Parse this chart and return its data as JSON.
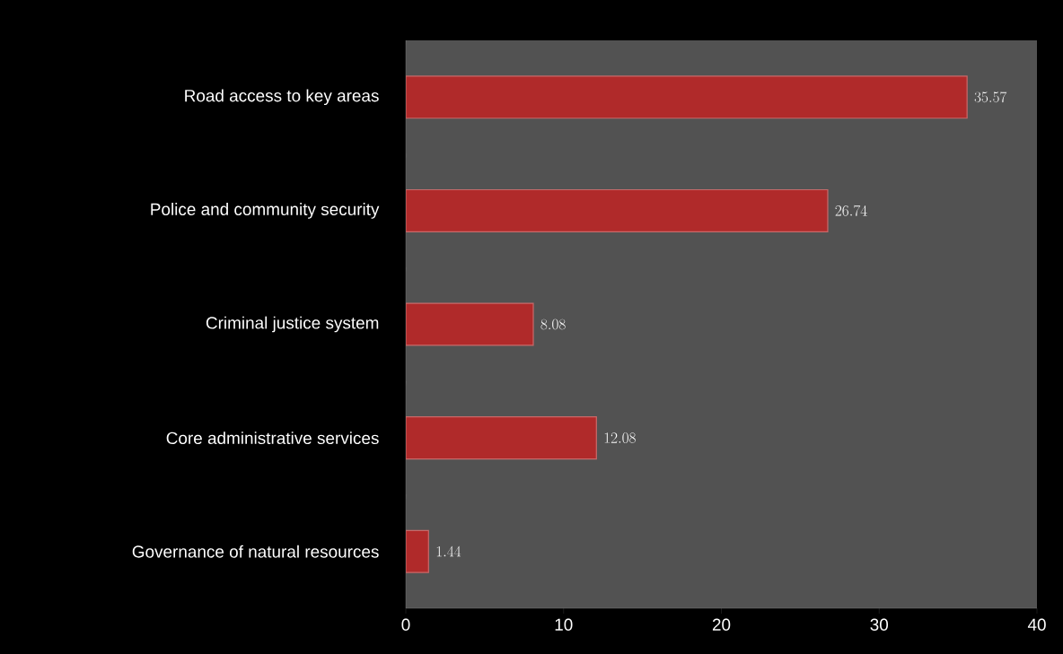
{
  "chart_data": {
    "type": "bar",
    "orientation": "horizontal",
    "categories": [
      "Road access to key areas",
      "Police and community security",
      "Criminal justice system",
      "Core administrative services",
      "Governance of natural resources"
    ],
    "values": [
      35.57,
      26.74,
      8.08,
      12.08,
      1.44
    ],
    "color": "#b02a2a",
    "xlim": [
      0,
      40
    ],
    "xticks": [
      0,
      10,
      20,
      30,
      40
    ],
    "data_labels": true
  }
}
